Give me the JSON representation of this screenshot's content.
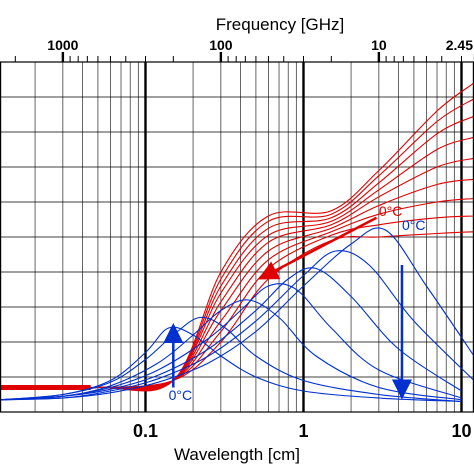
{
  "chart_data": {
    "type": "line",
    "title": "",
    "xlabel": "Wavelength [cm]",
    "x2label": "Frequency [GHz]",
    "xscale": "log",
    "xlim": [
      0.012,
      12
    ],
    "x_ticks": [
      0.1,
      1,
      10
    ],
    "x_tick_labels": [
      "0.1",
      "1",
      "10"
    ],
    "x2_ticks": [
      1000,
      100,
      10,
      2.45
    ],
    "x2_tick_labels": [
      "1000",
      "100",
      "10",
      "2.45"
    ],
    "ylim": [
      0,
      10
    ],
    "grid": true,
    "annotations": [
      {
        "text": "0°C",
        "color": "#e00000",
        "x": 3.0,
        "y": 5.6
      },
      {
        "text": "0°C",
        "color": "#0030d0",
        "x": 4.2,
        "y": 5.2
      },
      {
        "text": "0°C",
        "color": "#0030d0",
        "x": 0.14,
        "y": 0.35
      }
    ],
    "series": [
      {
        "group": "red",
        "color": "#e00000",
        "x": [
          0.012,
          0.05,
          0.15,
          0.3,
          0.6,
          1.5,
          3.0,
          7.0,
          12.0
        ],
        "y": [
          0.7,
          0.7,
          0.9,
          2.0,
          3.8,
          4.9,
          5.0,
          5.1,
          5.15
        ]
      },
      {
        "group": "red",
        "color": "#e00000",
        "x": [
          0.012,
          0.05,
          0.15,
          0.3,
          0.6,
          1.5,
          3.0,
          7.0,
          12.0
        ],
        "y": [
          0.7,
          0.7,
          0.9,
          2.3,
          4.1,
          5.05,
          5.35,
          5.55,
          5.6
        ]
      },
      {
        "group": "red",
        "color": "#e00000",
        "x": [
          0.012,
          0.05,
          0.15,
          0.3,
          0.6,
          1.5,
          3.0,
          7.0,
          12.0
        ],
        "y": [
          0.7,
          0.7,
          0.9,
          2.6,
          4.35,
          5.15,
          5.65,
          6.0,
          6.1
        ]
      },
      {
        "group": "red",
        "color": "#e00000",
        "x": [
          0.012,
          0.05,
          0.15,
          0.3,
          0.6,
          1.5,
          3.0,
          7.0,
          12.0
        ],
        "y": [
          0.7,
          0.7,
          0.9,
          2.9,
          4.6,
          5.25,
          5.9,
          6.5,
          6.65
        ]
      },
      {
        "group": "red",
        "color": "#e00000",
        "x": [
          0.012,
          0.05,
          0.15,
          0.3,
          0.6,
          1.5,
          3.0,
          7.0,
          12.0
        ],
        "y": [
          0.7,
          0.7,
          0.9,
          3.15,
          4.85,
          5.35,
          6.15,
          7.0,
          7.25
        ]
      },
      {
        "group": "red",
        "color": "#e00000",
        "x": [
          0.012,
          0.05,
          0.15,
          0.3,
          0.6,
          1.5,
          3.0,
          7.0,
          12.0
        ],
        "y": [
          0.7,
          0.7,
          0.9,
          3.4,
          5.05,
          5.45,
          6.35,
          7.5,
          7.85
        ]
      },
      {
        "group": "red",
        "color": "#e00000",
        "x": [
          0.012,
          0.05,
          0.15,
          0.3,
          0.6,
          1.5,
          3.0,
          7.0,
          12.0
        ],
        "y": [
          0.7,
          0.7,
          0.9,
          3.6,
          5.25,
          5.55,
          6.55,
          7.95,
          8.45
        ]
      },
      {
        "group": "red",
        "color": "#e00000",
        "x": [
          0.012,
          0.05,
          0.15,
          0.3,
          0.6,
          1.5,
          3.0,
          7.0,
          12.0
        ],
        "y": [
          0.7,
          0.7,
          0.9,
          3.8,
          5.45,
          5.65,
          6.75,
          8.3,
          8.95
        ]
      },
      {
        "group": "red",
        "color": "#e00000",
        "x": [
          0.012,
          0.05,
          0.15,
          0.3,
          0.6,
          1.5,
          3.0,
          7.0,
          12.0
        ],
        "y": [
          0.7,
          0.7,
          0.9,
          4.0,
          5.6,
          5.75,
          6.9,
          8.6,
          9.4
        ]
      },
      {
        "group": "blue",
        "color": "#0030d0",
        "x": [
          0.012,
          0.03,
          0.06,
          0.1,
          0.14,
          0.2,
          0.3,
          0.5,
          1.0,
          3.0,
          10.0
        ],
        "y": [
          0.35,
          0.5,
          0.9,
          1.7,
          2.4,
          2.2,
          1.6,
          1.0,
          0.6,
          0.4,
          0.3
        ]
      },
      {
        "group": "blue",
        "color": "#0030d0",
        "x": [
          0.012,
          0.03,
          0.06,
          0.1,
          0.15,
          0.22,
          0.32,
          0.5,
          1.0,
          3.0,
          10.0
        ],
        "y": [
          0.35,
          0.5,
          0.85,
          1.5,
          2.2,
          2.7,
          2.4,
          1.6,
          0.9,
          0.5,
          0.3
        ]
      },
      {
        "group": "blue",
        "color": "#0030d0",
        "x": [
          0.012,
          0.03,
          0.06,
          0.12,
          0.2,
          0.3,
          0.45,
          0.7,
          1.2,
          3.0,
          10.0
        ],
        "y": [
          0.35,
          0.45,
          0.75,
          1.4,
          2.2,
          2.9,
          3.2,
          2.7,
          1.6,
          0.7,
          0.35
        ]
      },
      {
        "group": "blue",
        "color": "#0030d0",
        "x": [
          0.012,
          0.03,
          0.06,
          0.12,
          0.25,
          0.4,
          0.6,
          0.9,
          1.5,
          3.0,
          10.0
        ],
        "y": [
          0.35,
          0.45,
          0.7,
          1.2,
          2.1,
          2.9,
          3.6,
          3.5,
          2.4,
          1.2,
          0.4
        ]
      },
      {
        "group": "blue",
        "color": "#0030d0",
        "x": [
          0.012,
          0.03,
          0.06,
          0.12,
          0.25,
          0.5,
          0.8,
          1.2,
          2.0,
          4.0,
          10.0
        ],
        "y": [
          0.35,
          0.45,
          0.65,
          1.05,
          1.8,
          2.9,
          3.8,
          4.1,
          3.3,
          1.8,
          0.6
        ]
      },
      {
        "group": "blue",
        "color": "#0030d0",
        "x": [
          0.012,
          0.03,
          0.06,
          0.12,
          0.25,
          0.5,
          1.0,
          1.6,
          2.6,
          5.0,
          12.0
        ],
        "y": [
          0.35,
          0.4,
          0.6,
          0.95,
          1.6,
          2.6,
          3.9,
          4.6,
          4.2,
          2.6,
          0.9
        ]
      },
      {
        "group": "blue",
        "color": "#0030d0",
        "x": [
          0.012,
          0.03,
          0.06,
          0.12,
          0.25,
          0.5,
          1.0,
          2.0,
          3.3,
          6.0,
          12.0
        ],
        "y": [
          0.35,
          0.4,
          0.55,
          0.85,
          1.4,
          2.3,
          3.6,
          4.8,
          5.2,
          3.6,
          1.6
        ]
      }
    ]
  }
}
